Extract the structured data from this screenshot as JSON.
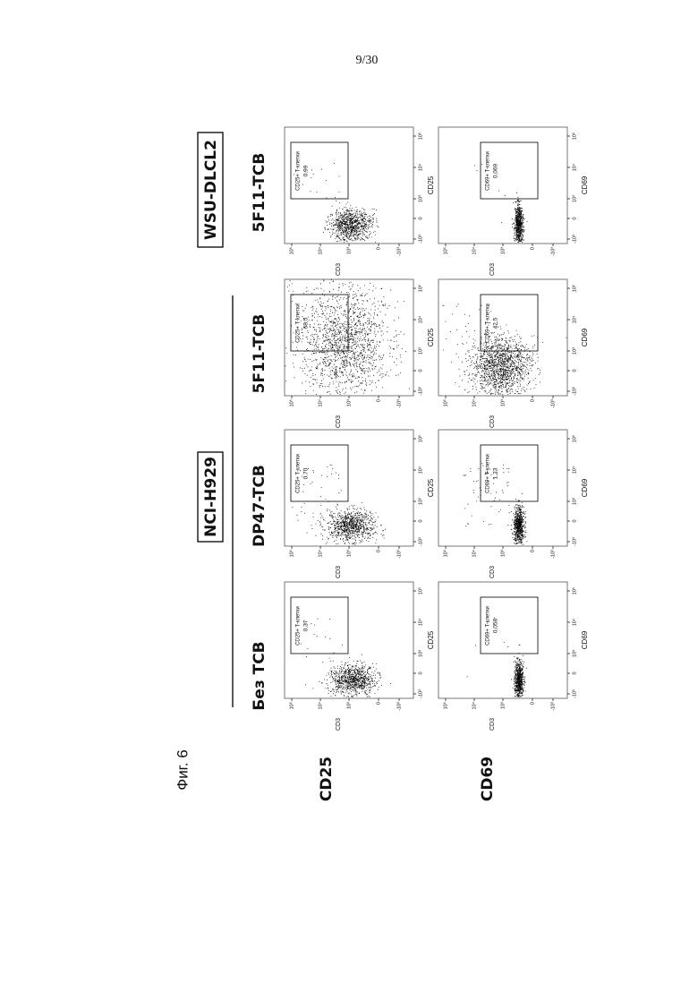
{
  "page_number": "9/30",
  "figure_label": "Фиг. 6",
  "groups": [
    {
      "label": "NCI-H929"
    },
    {
      "label": "WSU-DLCL2"
    }
  ],
  "columns": [
    "Без TCB",
    "DP47-TCB",
    "5F11-TCB",
    "5F11-TCB"
  ],
  "rows": [
    {
      "label": "CD25",
      "x_axis_label": "CD25",
      "y_axis_label": "CD3",
      "gate_label": "CD25+ T-клетки",
      "gate_values": [
        "0,37",
        "0,70",
        "68,5",
        "0,99"
      ]
    },
    {
      "label": "CD69",
      "x_axis_label": "CD69",
      "y_axis_label": "CD3",
      "gate_label": "CD69+ T-клетки",
      "gate_values": [
        "0,058",
        "1,23",
        "42,5",
        "0,069"
      ]
    }
  ],
  "axis_ticks": [
    "-10³",
    "0",
    "10³",
    "10⁴",
    "10⁵"
  ]
}
